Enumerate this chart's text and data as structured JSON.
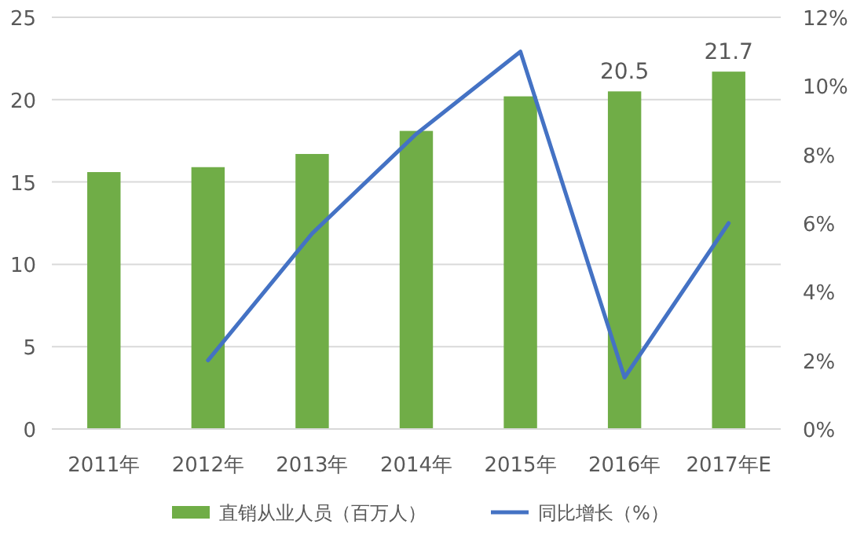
{
  "chart_data": {
    "type": "bar",
    "categories": [
      "2011年",
      "2012年",
      "2013年",
      "2014年",
      "2015年",
      "2016年",
      "2017年E"
    ],
    "series": [
      {
        "name": "直销从业人员（百万人）",
        "color": "#70ad47",
        "values": [
          15.6,
          15.9,
          16.7,
          18.1,
          20.2,
          20.5,
          21.7
        ],
        "value_labels": [
          null,
          null,
          null,
          null,
          null,
          "20.5",
          "21.7"
        ]
      },
      {
        "name": "同比增长（%）",
        "type": "line",
        "axis": "y2",
        "color": "#4472c4",
        "values": [
          null,
          2.0,
          5.7,
          8.6,
          11.0,
          1.5,
          6.0
        ]
      }
    ],
    "ylim": [
      0,
      25
    ],
    "yticks": [
      0,
      5,
      10,
      15,
      20,
      25
    ],
    "y2lim": [
      0,
      12
    ],
    "y2ticks": [
      {
        "value": 0,
        "label": "0%"
      },
      {
        "value": 2,
        "label": "2%"
      },
      {
        "value": 4,
        "label": "4%"
      },
      {
        "value": 6,
        "label": "6%"
      },
      {
        "value": 8,
        "label": "8%"
      },
      {
        "value": 10,
        "label": "10%"
      },
      {
        "value": 12,
        "label": "12%"
      }
    ],
    "grid": "y",
    "legend": "bottom"
  }
}
